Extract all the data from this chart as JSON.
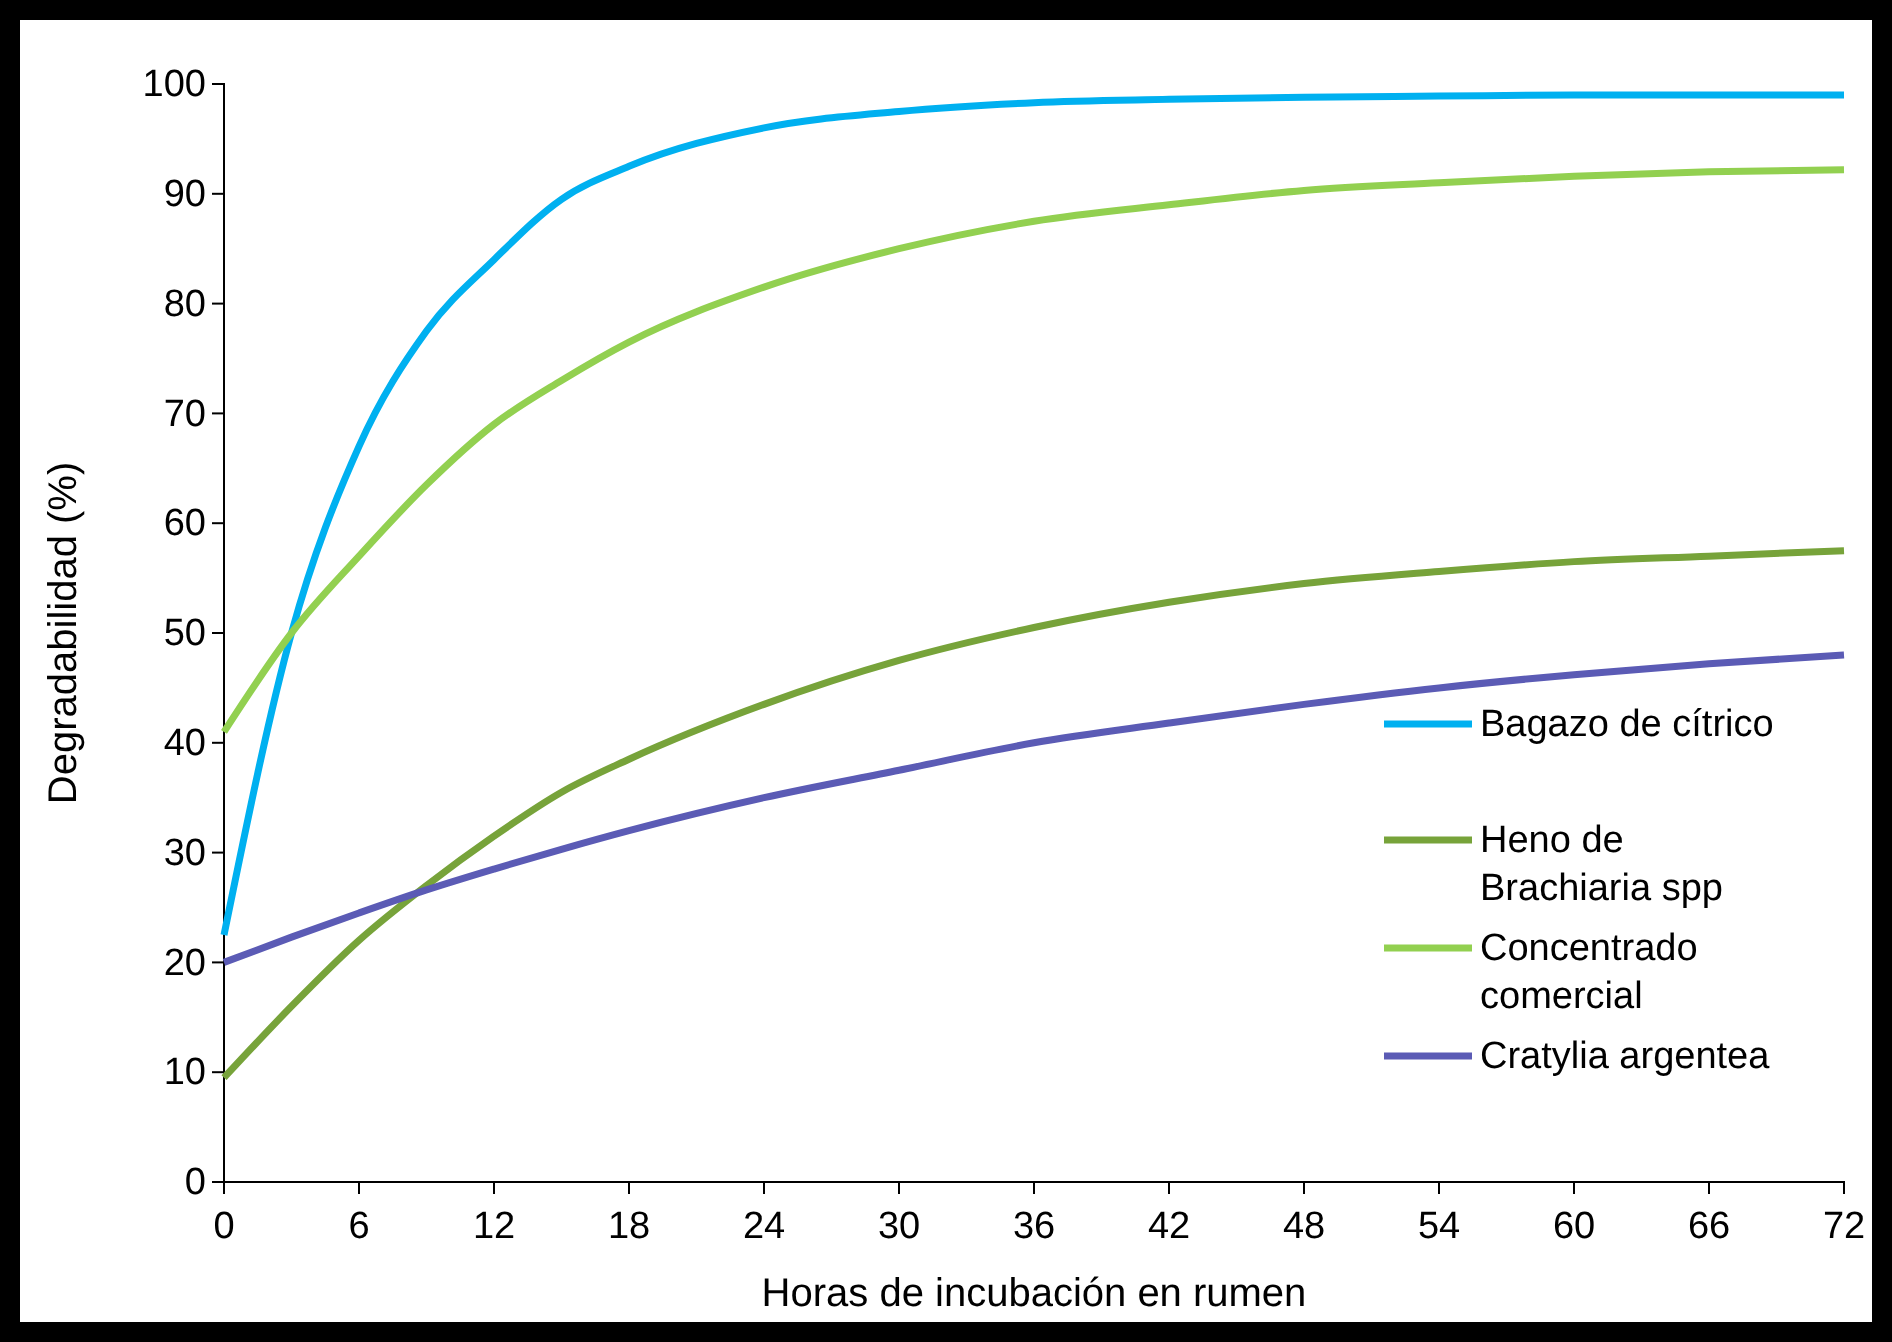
{
  "chart_data": {
    "type": "line",
    "xlabel": "Horas de incubación en rumen",
    "ylabel": "Degradabilidad (%)",
    "x": [
      0,
      3,
      6,
      9,
      12,
      15,
      18,
      24,
      30,
      36,
      42,
      48,
      54,
      60,
      66,
      72
    ],
    "xlim": [
      0,
      72
    ],
    "xticks": [
      0,
      6,
      12,
      18,
      24,
      30,
      36,
      42,
      48,
      54,
      60,
      66,
      72
    ],
    "ylim": [
      0,
      100
    ],
    "yticks": [
      0,
      10,
      20,
      30,
      40,
      50,
      60,
      70,
      80,
      90,
      100
    ],
    "grid": false,
    "legend": "right",
    "marker": "none",
    "line_style": "solid",
    "series": [
      {
        "name": "Bagazo de cítrico",
        "color": "#00b0f0",
        "values": [
          22.5,
          50,
          67,
          77.5,
          84,
          89.5,
          92.5,
          96,
          97.5,
          98.3,
          98.6,
          98.8,
          98.9,
          99,
          99,
          99
        ]
      },
      {
        "name": "Heno de Brachiaria spp",
        "color": "#77a33a",
        "values": [
          9.5,
          16,
          22,
          27,
          31.5,
          35.5,
          38.5,
          43.5,
          47.5,
          50.5,
          52.8,
          54.5,
          55.6,
          56.5,
          57,
          57.5
        ]
      },
      {
        "name": "Concentrado comercial",
        "color": "#92d050",
        "values": [
          41,
          50,
          57,
          63.5,
          69,
          73,
          76.5,
          81.5,
          85,
          87.5,
          89,
          90.3,
          91,
          91.6,
          92,
          92.2
        ]
      },
      {
        "name": "Cratylia argentea",
        "color": "#5b5bb5",
        "values": [
          20,
          22.3,
          24.5,
          26.6,
          28.5,
          30.3,
          32,
          35,
          37.5,
          40,
          41.8,
          43.5,
          45,
          46.2,
          47.2,
          48
        ]
      }
    ]
  }
}
